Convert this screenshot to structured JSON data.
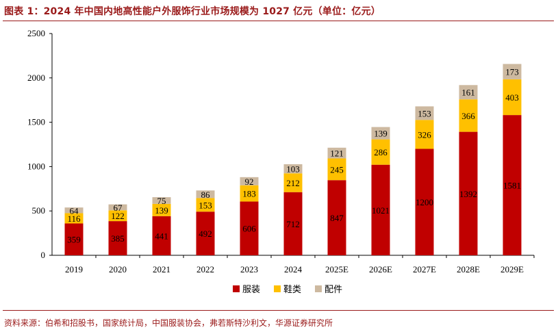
{
  "title": "图表 1：2024 年中国内地高性能户外服饰行业市场规模为 1027 亿元（单位：亿元）",
  "source": "资料来源：伯希和招股书，国家统计局，中国服装协会，弗若斯特沙利文，华源证券研究所",
  "chart_data": {
    "type": "bar",
    "stacked": true,
    "categories": [
      "2019",
      "2020",
      "2021",
      "2022",
      "2023",
      "2024",
      "2025E",
      "2026E",
      "2027E",
      "2028E",
      "2029E"
    ],
    "series": [
      {
        "name": "服装",
        "color": "#c00000",
        "values": [
          359,
          385,
          441,
          492,
          606,
          712,
          847,
          1021,
          1200,
          1392,
          1581
        ]
      },
      {
        "name": "鞋类",
        "color": "#ffc000",
        "values": [
          116,
          122,
          139,
          153,
          183,
          212,
          245,
          286,
          326,
          366,
          403
        ]
      },
      {
        "name": "配件",
        "color": "#cdb9a0",
        "values": [
          64,
          67,
          75,
          86,
          92,
          103,
          121,
          139,
          153,
          161,
          173
        ]
      }
    ],
    "ylim": [
      0,
      2500
    ],
    "yticks": [
      0,
      500,
      1000,
      1500,
      2000,
      2500
    ],
    "grid": false,
    "legend_position": "bottom"
  }
}
